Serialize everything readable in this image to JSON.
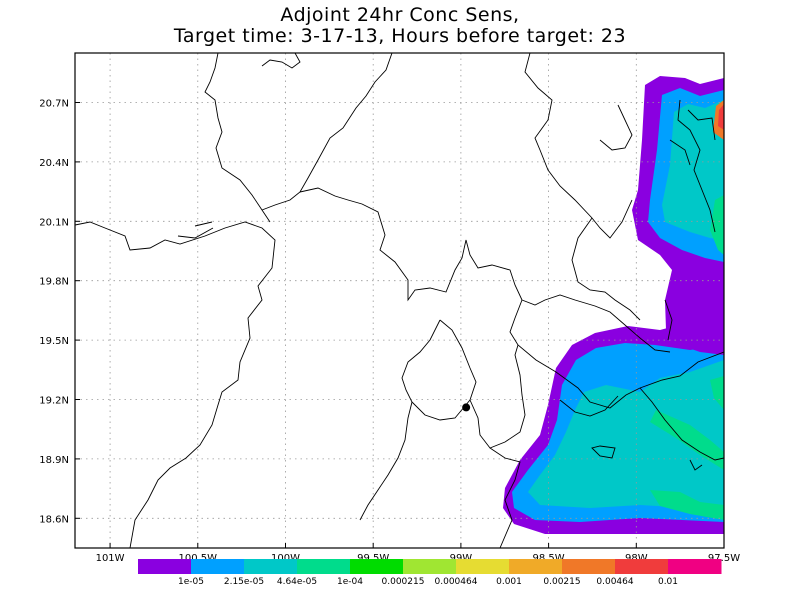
{
  "title": {
    "line1": "Adjoint 24hr Conc Sens,",
    "line2": "Target time: 3-17-13, Hours before target: 23"
  },
  "map": {
    "lon_range": [
      -101.2,
      -97.5
    ],
    "lat_range": [
      18.45,
      20.95
    ],
    "lat_ticks": [
      "20.7N",
      "20.4N",
      "20.1N",
      "19.8N",
      "19.5N",
      "19.2N",
      "18.9N",
      "18.6N"
    ],
    "lat_values": [
      20.7,
      20.4,
      20.1,
      19.8,
      19.5,
      19.2,
      18.9,
      18.6
    ],
    "lon_ticks": [
      "101W",
      "100.5W",
      "100W",
      "99.5W",
      "99W",
      "98.5W",
      "98W",
      "97.5W"
    ],
    "lon_values": [
      -101.0,
      -100.5,
      -100.0,
      -99.5,
      -99.0,
      -98.5,
      -98.0,
      -97.5
    ],
    "grid": "dotted",
    "target_marker": {
      "lon": -98.97,
      "lat": 19.16,
      "shape": "filled-circle"
    }
  },
  "colorbar": {
    "colors": [
      "#8a00e0",
      "#00a0ff",
      "#00c8c8",
      "#00dc8c",
      "#00dc00",
      "#a0e632",
      "#e6dc32",
      "#f0aa28",
      "#f07828",
      "#f03c3c",
      "#f00082"
    ],
    "labels": [
      "1e-05",
      "2.15e-05",
      "4.64e-05",
      "1e-04",
      "0.000215",
      "0.000464",
      "0.001",
      "0.00215",
      "0.00464",
      "0.01"
    ]
  }
}
